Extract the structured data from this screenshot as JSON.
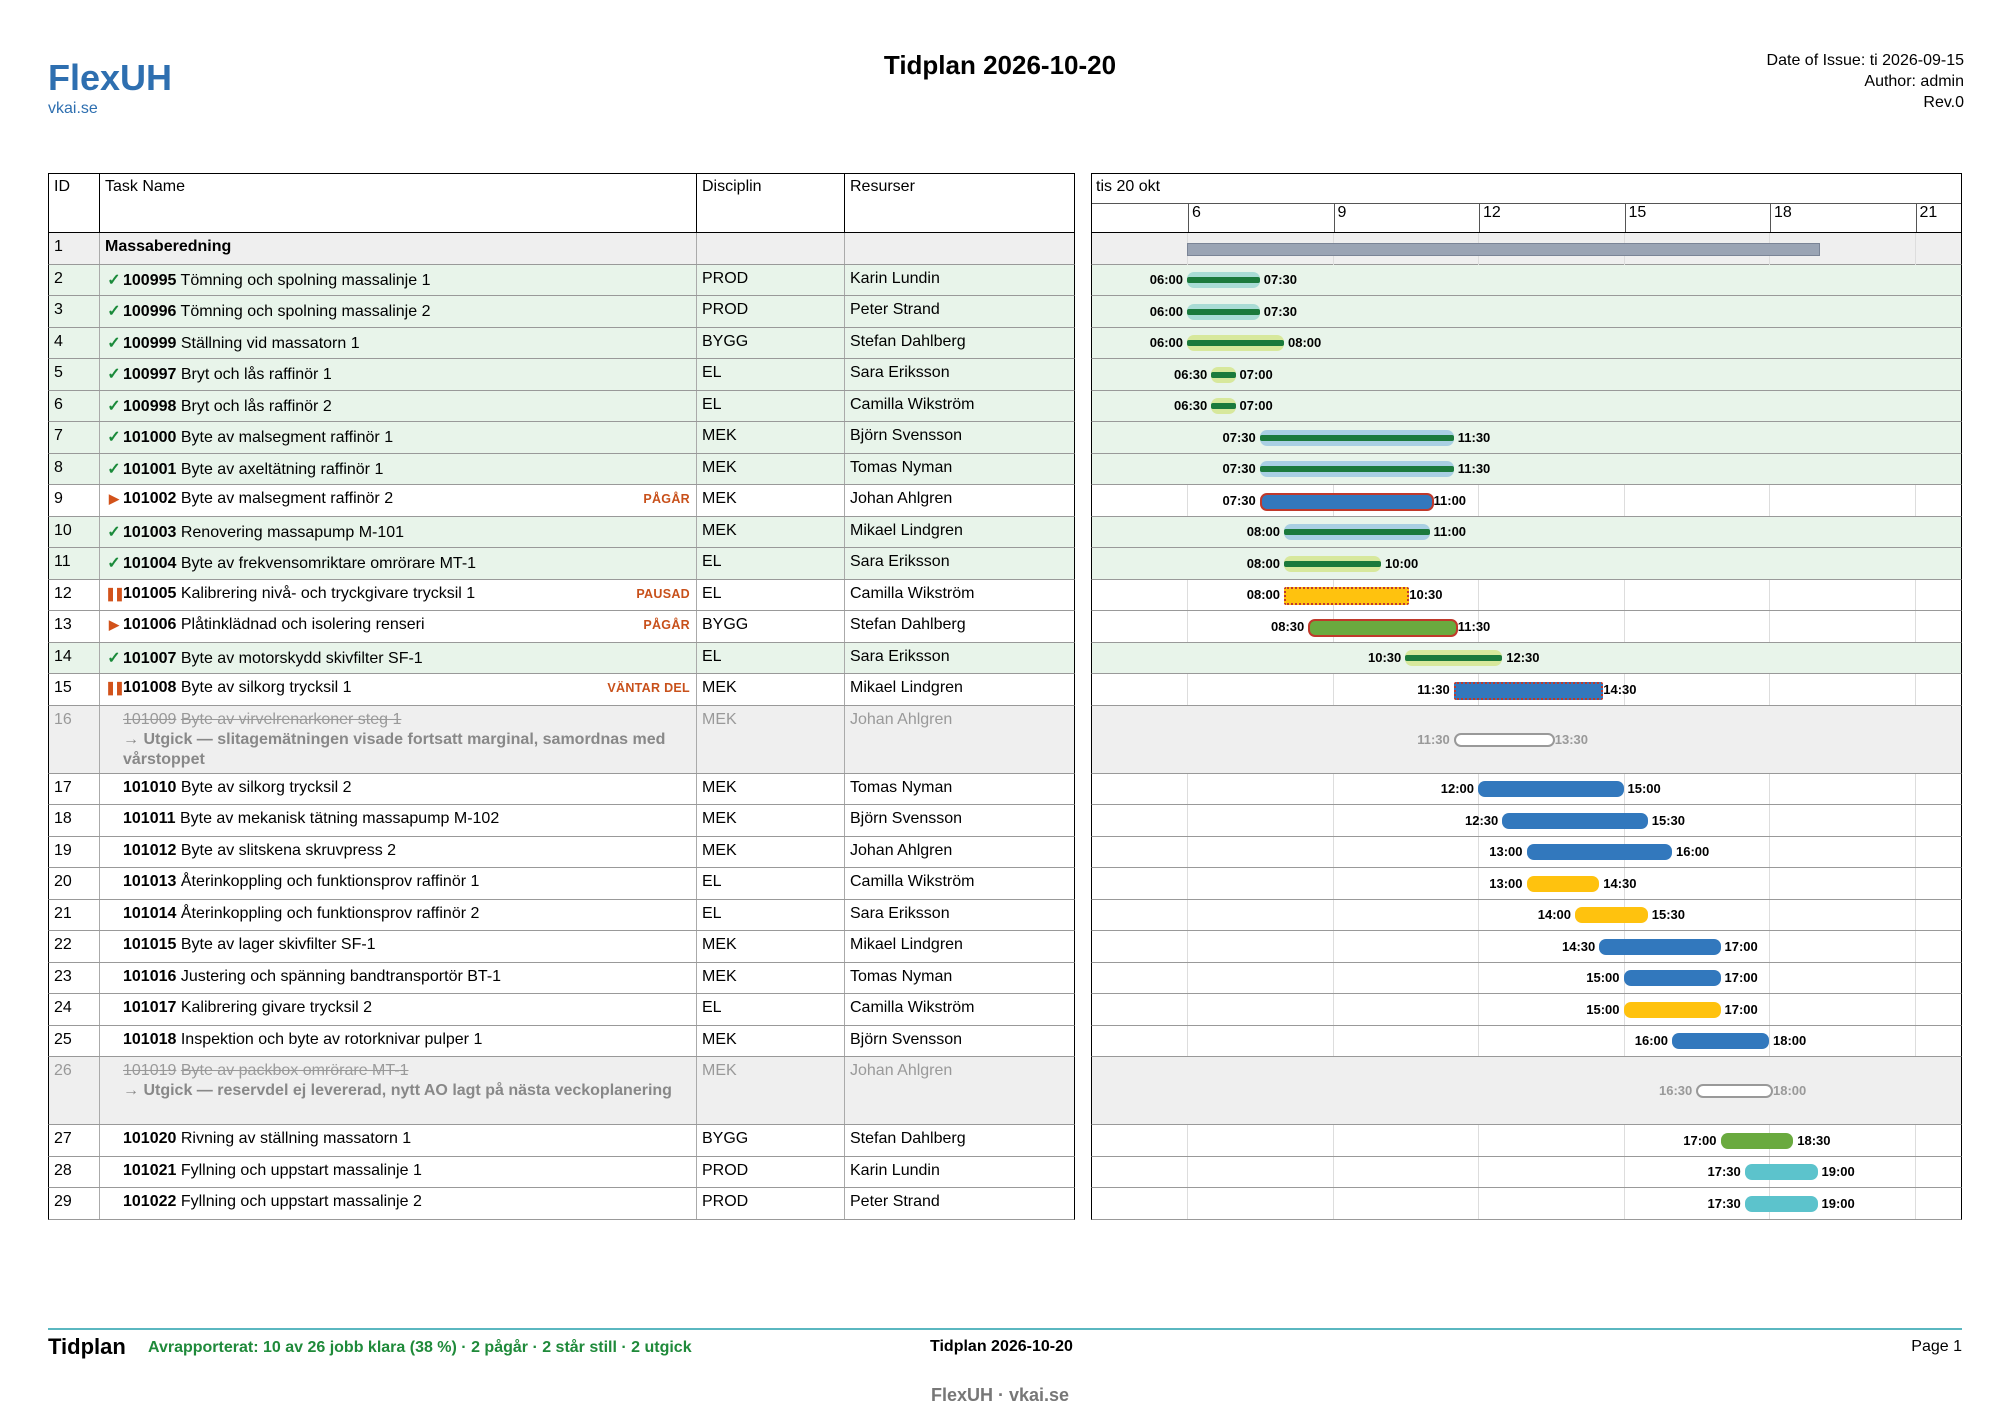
{
  "header": {
    "logo_title": "FlexUH",
    "logo_sub": "vkai.se",
    "title": "Tidplan 2026-10-20",
    "date_of_issue": "Date of Issue: ti 2026-09-15",
    "author": "Author: admin",
    "rev": "Rev.0"
  },
  "columns": {
    "id": "ID",
    "task": "Task Name",
    "disc": "Disciplin",
    "res": "Resurser"
  },
  "gantt_header": {
    "day": "tis 20 okt",
    "ticks": [
      "6",
      "9",
      "12",
      "15",
      "18",
      "21"
    ]
  },
  "colors": {
    "green": "#1b7a3c",
    "blue": "#3278bd",
    "yellow": "#ffc20e",
    "grass": "#6aaa3f",
    "teal": "#5cc3cc",
    "group": "#9aa4b4",
    "progress_red": "#c0392b"
  },
  "rows": [
    {
      "id": "1",
      "type": "group",
      "name": "Massaberedning",
      "disc": "",
      "res": "",
      "start": "06:00",
      "end": "19:00"
    },
    {
      "id": "2",
      "type": "done",
      "code": "100995",
      "name": "Tömning och spolning massalinje 1",
      "disc": "PROD",
      "res": "Karin Lundin",
      "start": "06:00",
      "end": "07:30",
      "color": "green"
    },
    {
      "id": "3",
      "type": "done",
      "code": "100996",
      "name": "Tömning och spolning massalinje 2",
      "disc": "PROD",
      "res": "Peter Strand",
      "start": "06:00",
      "end": "07:30",
      "color": "green"
    },
    {
      "id": "4",
      "type": "done",
      "code": "100999",
      "name": "Ställning vid massatorn 1",
      "disc": "BYGG",
      "res": "Stefan Dahlberg",
      "start": "06:00",
      "end": "08:00",
      "color": "green"
    },
    {
      "id": "5",
      "type": "done",
      "code": "100997",
      "name": "Bryt och lås raffinör 1",
      "disc": "EL",
      "res": "Sara Eriksson",
      "start": "06:30",
      "end": "07:00",
      "color": "green"
    },
    {
      "id": "6",
      "type": "done",
      "code": "100998",
      "name": "Bryt och lås raffinör 2",
      "disc": "EL",
      "res": "Camilla Wikström",
      "start": "06:30",
      "end": "07:00",
      "color": "green"
    },
    {
      "id": "7",
      "type": "done",
      "code": "101000",
      "name": "Byte av malsegment raffinör 1",
      "disc": "MEK",
      "res": "Björn Svensson",
      "start": "07:30",
      "end": "11:30",
      "color": "green"
    },
    {
      "id": "8",
      "type": "done",
      "code": "101001",
      "name": "Byte av axeltätning raffinör 1",
      "disc": "MEK",
      "res": "Tomas Nyman",
      "start": "07:30",
      "end": "11:30",
      "color": "green"
    },
    {
      "id": "9",
      "type": "progress",
      "code": "101002",
      "name": "Byte av malsegment raffinör 2",
      "status": "PÅGÅR",
      "disc": "MEK",
      "res": "Johan Ahlgren",
      "start": "07:30",
      "end": "11:00",
      "color": "blue"
    },
    {
      "id": "10",
      "type": "done",
      "code": "101003",
      "name": "Renovering massapump M-101",
      "disc": "MEK",
      "res": "Mikael Lindgren",
      "start": "08:00",
      "end": "11:00",
      "color": "green"
    },
    {
      "id": "11",
      "type": "done",
      "code": "101004",
      "name": "Byte av frekvensomriktare omrörare MT-1",
      "disc": "EL",
      "res": "Sara Eriksson",
      "start": "08:00",
      "end": "10:00",
      "color": "green"
    },
    {
      "id": "12",
      "type": "paused",
      "code": "101005",
      "name": "Kalibrering nivå- och tryckgivare trycksil 1",
      "status": "PAUSAD",
      "disc": "EL",
      "res": "Camilla Wikström",
      "start": "08:00",
      "end": "10:30",
      "color": "yellow"
    },
    {
      "id": "13",
      "type": "progress",
      "code": "101006",
      "name": "Plåtinklädnad och isolering renseri",
      "status": "PÅGÅR",
      "disc": "BYGG",
      "res": "Stefan Dahlberg",
      "start": "08:30",
      "end": "11:30",
      "color": "grass"
    },
    {
      "id": "14",
      "type": "done",
      "code": "101007",
      "name": "Byte av motorskydd skivfilter SF-1",
      "disc": "EL",
      "res": "Sara Eriksson",
      "start": "10:30",
      "end": "12:30",
      "color": "green"
    },
    {
      "id": "15",
      "type": "paused",
      "code": "101008",
      "name": "Byte av silkorg trycksil 1",
      "status": "VÄNTAR DEL",
      "disc": "MEK",
      "res": "Mikael Lindgren",
      "start": "11:30",
      "end": "14:30",
      "color": "blue"
    },
    {
      "id": "16",
      "type": "cancel",
      "code": "101009",
      "name": "Byte av virvelrenarkoner steg 1",
      "note": "→ Utgick — slitagemätningen visade fortsatt marginal, samordnas med vårstoppet",
      "disc": "MEK",
      "res": "Johan Ahlgren",
      "start": "11:30",
      "end": "13:30"
    },
    {
      "id": "17",
      "type": "todo",
      "code": "101010",
      "name": "Byte av silkorg trycksil 2",
      "disc": "MEK",
      "res": "Tomas Nyman",
      "start": "12:00",
      "end": "15:00",
      "color": "blue"
    },
    {
      "id": "18",
      "type": "todo",
      "code": "101011",
      "name": "Byte av mekanisk tätning massapump M-102",
      "disc": "MEK",
      "res": "Björn Svensson",
      "start": "12:30",
      "end": "15:30",
      "color": "blue"
    },
    {
      "id": "19",
      "type": "todo",
      "code": "101012",
      "name": "Byte av slitskena skruvpress 2",
      "disc": "MEK",
      "res": "Johan Ahlgren",
      "start": "13:00",
      "end": "16:00",
      "color": "blue"
    },
    {
      "id": "20",
      "type": "todo",
      "code": "101013",
      "name": "Återinkoppling och funktionsprov raffinör 1",
      "disc": "EL",
      "res": "Camilla Wikström",
      "start": "13:00",
      "end": "14:30",
      "color": "yellow"
    },
    {
      "id": "21",
      "type": "todo",
      "code": "101014",
      "name": "Återinkoppling och funktionsprov raffinör 2",
      "disc": "EL",
      "res": "Sara Eriksson",
      "start": "14:00",
      "end": "15:30",
      "color": "yellow"
    },
    {
      "id": "22",
      "type": "todo",
      "code": "101015",
      "name": "Byte av lager skivfilter SF-1",
      "disc": "MEK",
      "res": "Mikael Lindgren",
      "start": "14:30",
      "end": "17:00",
      "color": "blue"
    },
    {
      "id": "23",
      "type": "todo",
      "code": "101016",
      "name": "Justering och spänning bandtransportör BT-1",
      "disc": "MEK",
      "res": "Tomas Nyman",
      "start": "15:00",
      "end": "17:00",
      "color": "blue"
    },
    {
      "id": "24",
      "type": "todo",
      "code": "101017",
      "name": "Kalibrering givare trycksil 2",
      "disc": "EL",
      "res": "Camilla Wikström",
      "start": "15:00",
      "end": "17:00",
      "color": "yellow"
    },
    {
      "id": "25",
      "type": "todo",
      "code": "101018",
      "name": "Inspektion och byte av rotorknivar pulper 1",
      "disc": "MEK",
      "res": "Björn Svensson",
      "start": "16:00",
      "end": "18:00",
      "color": "blue"
    },
    {
      "id": "26",
      "type": "cancel",
      "code": "101019",
      "name": "Byte av packbox omrörare MT-1",
      "note": "→ Utgick — reservdel ej levererad, nytt AO lagt på nästa veckoplanering",
      "disc": "MEK",
      "res": "Johan Ahlgren",
      "start": "16:30",
      "end": "18:00"
    },
    {
      "id": "27",
      "type": "todo",
      "code": "101020",
      "name": "Rivning av ställning massatorn 1",
      "disc": "BYGG",
      "res": "Stefan Dahlberg",
      "start": "17:00",
      "end": "18:30",
      "color": "grass"
    },
    {
      "id": "28",
      "type": "todo",
      "code": "101021",
      "name": "Fyllning och uppstart massalinje 1",
      "disc": "PROD",
      "res": "Karin Lundin",
      "start": "17:30",
      "end": "19:00",
      "color": "teal"
    },
    {
      "id": "29",
      "type": "todo",
      "code": "101022",
      "name": "Fyllning och uppstart massalinje 2",
      "disc": "PROD",
      "res": "Peter Strand",
      "start": "17:30",
      "end": "19:00",
      "color": "teal"
    }
  ],
  "footer": {
    "title": "Tidplan",
    "status": "Avrapporterat: 10 av 26 jobb klara (38 %) · 2 pågår · 2 står still · 2 utgick",
    "center": "Tidplan 2026-10-20",
    "page": "Page 1",
    "brand": "FlexUH · vkai.se"
  }
}
